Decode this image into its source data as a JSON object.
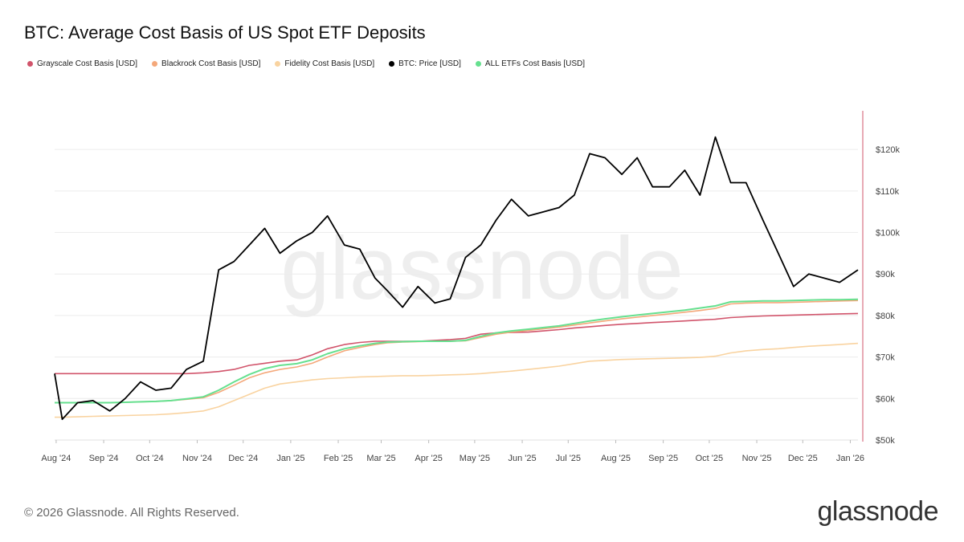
{
  "chart_data": {
    "type": "line",
    "title": "BTC: Average Cost Basis of US Spot ETF Deposits",
    "xlabel": "",
    "ylabel": "",
    "x_ticks": [
      "Aug '24",
      "Sep '24",
      "Oct '24",
      "Nov '24",
      "Dec '24",
      "Jan '25",
      "Feb '25",
      "Mar '25",
      "Apr '25",
      "May '25",
      "Jun '25",
      "Jul '25",
      "Aug '25",
      "Sep '25",
      "Oct '25",
      "Nov '25",
      "Dec '25",
      "Jan '26"
    ],
    "y_ticks": [
      "$50k",
      "$60k",
      "$70k",
      "$80k",
      "$90k",
      "$100k",
      "$110k",
      "$120k"
    ],
    "ylim": [
      50000,
      127000
    ],
    "xlim": [
      "2024-07-31",
      "2026-01-06"
    ],
    "grid": true,
    "legend_position": "top-left",
    "x_dates": [
      "2024-07-31",
      "2024-08-05",
      "2024-08-15",
      "2024-08-25",
      "2024-09-05",
      "2024-09-15",
      "2024-09-25",
      "2024-10-05",
      "2024-10-15",
      "2024-10-25",
      "2024-11-05",
      "2024-11-15",
      "2024-11-25",
      "2024-12-05",
      "2024-12-15",
      "2024-12-25",
      "2025-01-05",
      "2025-01-15",
      "2025-01-25",
      "2025-02-05",
      "2025-02-15",
      "2025-02-25",
      "2025-03-05",
      "2025-03-15",
      "2025-03-25",
      "2025-04-05",
      "2025-04-15",
      "2025-04-25",
      "2025-05-05",
      "2025-05-15",
      "2025-05-25",
      "2025-06-05",
      "2025-06-15",
      "2025-06-25",
      "2025-07-05",
      "2025-07-15",
      "2025-07-25",
      "2025-08-05",
      "2025-08-15",
      "2025-08-25",
      "2025-09-05",
      "2025-09-15",
      "2025-09-25",
      "2025-10-05",
      "2025-10-15",
      "2025-10-25",
      "2025-11-05",
      "2025-11-15",
      "2025-11-25",
      "2025-12-05",
      "2025-12-15",
      "2025-12-25",
      "2026-01-06"
    ],
    "series": [
      {
        "name": "Grayscale Cost Basis [USD]",
        "color": "#d1546b",
        "values": [
          66000,
          66000,
          66000,
          66000,
          66000,
          66000,
          66000,
          66000,
          66000,
          66000,
          66200,
          66500,
          67000,
          68000,
          68500,
          69000,
          69300,
          70500,
          72000,
          73000,
          73500,
          73800,
          73800,
          73800,
          73800,
          74000,
          74200,
          74500,
          75500,
          75800,
          75900,
          76000,
          76300,
          76600,
          77000,
          77300,
          77600,
          77900,
          78100,
          78300,
          78500,
          78700,
          78900,
          79100,
          79500,
          79700,
          79900,
          80000,
          80100,
          80200,
          80300,
          80400,
          80500
        ]
      },
      {
        "name": "Blackrock Cost Basis [USD]",
        "color": "#f4a87a",
        "values": [
          59000,
          59000,
          59000,
          59000,
          59000,
          59100,
          59200,
          59300,
          59500,
          59800,
          60200,
          61500,
          63200,
          65000,
          66200,
          67000,
          67600,
          68500,
          70000,
          71500,
          72300,
          73000,
          73400,
          73600,
          73700,
          73800,
          73800,
          73900,
          74700,
          75500,
          76000,
          76400,
          76800,
          77200,
          77700,
          78200,
          78700,
          79200,
          79600,
          80000,
          80400,
          80800,
          81200,
          81700,
          82800,
          83000,
          83100,
          83100,
          83200,
          83300,
          83400,
          83500,
          83600
        ]
      },
      {
        "name": "Fidelity Cost Basis [USD]",
        "color": "#f9d3a0",
        "values": [
          55500,
          55500,
          55600,
          55700,
          55800,
          55900,
          56000,
          56100,
          56300,
          56600,
          57000,
          58000,
          59500,
          61000,
          62500,
          63500,
          64000,
          64500,
          64800,
          65000,
          65200,
          65300,
          65400,
          65500,
          65500,
          65600,
          65700,
          65800,
          66000,
          66300,
          66600,
          67000,
          67400,
          67800,
          68400,
          69000,
          69200,
          69400,
          69500,
          69600,
          69700,
          69800,
          69900,
          70200,
          71000,
          71500,
          71800,
          72000,
          72300,
          72600,
          72800,
          73000,
          73300
        ]
      },
      {
        "name": "BTC: Price [USD]",
        "color": "#000000",
        "values": [
          66000,
          55000,
          59000,
          59500,
          57000,
          60000,
          64000,
          62000,
          62500,
          67000,
          69000,
          91000,
          93000,
          97000,
          101000,
          95000,
          98000,
          100000,
          104000,
          97000,
          96000,
          89000,
          86000,
          82000,
          87000,
          83000,
          84000,
          94000,
          97000,
          103000,
          108000,
          104000,
          105000,
          106000,
          109000,
          119000,
          118000,
          114000,
          118000,
          111000,
          111000,
          115000,
          109000,
          123000,
          112000,
          112000,
          103000,
          95000,
          87000,
          90000,
          89000,
          88000,
          91000
        ]
      },
      {
        "name": "ALL ETFs Cost Basis [USD]",
        "color": "#66e08f",
        "values": [
          59000,
          59000,
          59000,
          59000,
          59000,
          59100,
          59200,
          59300,
          59500,
          59900,
          60400,
          62000,
          64000,
          65800,
          67200,
          68000,
          68400,
          69300,
          70800,
          72000,
          72700,
          73300,
          73600,
          73700,
          73800,
          73800,
          73800,
          74000,
          75000,
          75800,
          76300,
          76700,
          77100,
          77500,
          78100,
          78700,
          79200,
          79700,
          80100,
          80500,
          80900,
          81300,
          81800,
          82300,
          83300,
          83400,
          83500,
          83500,
          83600,
          83700,
          83800,
          83800,
          83900
        ]
      }
    ]
  },
  "footer": {
    "copyright": "© 2026 Glassnode. All Rights Reserved.",
    "brand": "glassnode"
  },
  "watermark": "glassnode"
}
